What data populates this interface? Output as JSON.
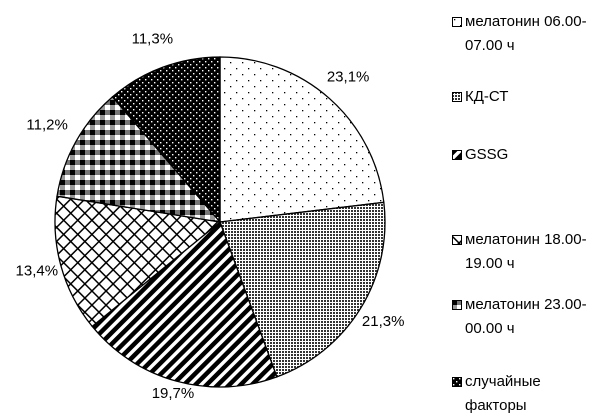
{
  "chart_data": {
    "type": "pie",
    "categories": [
      "мелатонин 06.00-07.00 ч",
      "КД-СТ",
      "GSSG",
      "мелатонин 18.00-19.00 ч",
      "мелатонин 23.00-00.00 ч",
      "случайные факторы"
    ],
    "values": [
      23.1,
      21.3,
      19.7,
      13.4,
      11.2,
      11.3
    ],
    "value_labels": [
      "23,1%",
      "21,3%",
      "19,7%",
      "13,4%",
      "11,2%",
      "11,3%"
    ],
    "legend": "right"
  }
}
